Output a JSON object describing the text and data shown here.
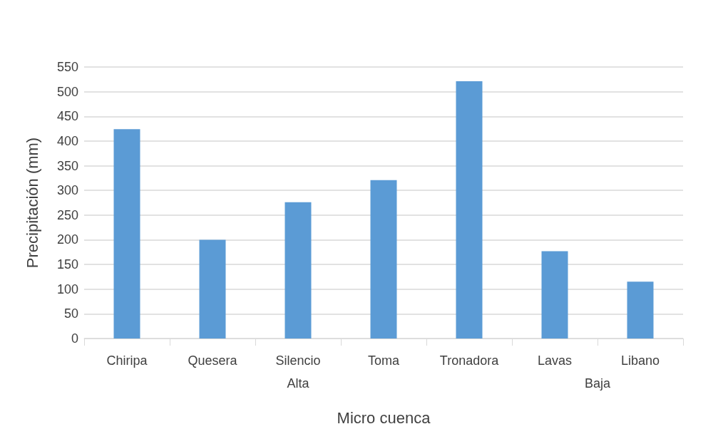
{
  "chart_data": {
    "type": "bar",
    "xlabel": "Micro cuenca",
    "ylabel": "Precipitación (mm)",
    "categories": [
      "Chiripa",
      "Quesera",
      "Silencio",
      "Toma",
      "Tronadora",
      "Lavas",
      "Libano"
    ],
    "values": [
      424,
      200,
      276,
      321,
      521,
      177,
      115
    ],
    "color": "#5b9bd5",
    "ylim": [
      0,
      550
    ],
    "yticks": [
      0,
      50,
      100,
      150,
      200,
      250,
      300,
      350,
      400,
      450,
      500,
      550
    ],
    "grid": "y",
    "annotations": [
      "Alta",
      "Baja"
    ]
  }
}
